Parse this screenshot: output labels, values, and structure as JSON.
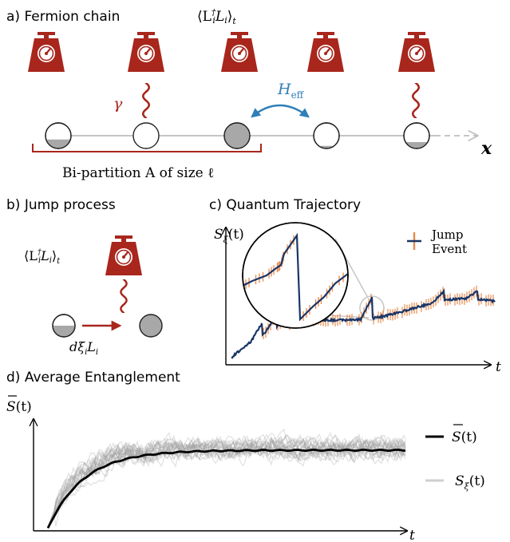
{
  "panels": {
    "a": {
      "title": "a)  Fermion chain",
      "measurement_label": "⟨L",
      "measurement_label_sup": "†",
      "measurement_label_sub": "i",
      "measurement_label_rest": "L",
      "measurement_label_sub2": "i",
      "measurement_label_close": "⟩",
      "measurement_label_t": "t",
      "rate_label": "γ",
      "hamiltonian_label": "H",
      "hamiltonian_sub": "eff",
      "axis_label": "x",
      "bipartition_label": "Bi-partition A of size ℓ",
      "site_fill_levels": [
        0.35,
        0.0,
        1.0,
        0.1,
        0.25
      ],
      "site_monitored": [
        false,
        true,
        false,
        false,
        true
      ]
    },
    "b": {
      "title": "b)  Jump process",
      "measurement_label": "⟨L",
      "measurement_label_sup": "†",
      "measurement_label_sub": "i",
      "measurement_label_rest": "L",
      "measurement_label_sub2": "i",
      "measurement_label_close": "⟩",
      "measurement_label_t": "t",
      "jump_label": "dξ",
      "jump_label_sub": "i",
      "jump_label_rest": "L",
      "jump_label_sub2": "i"
    },
    "c": {
      "title": "c)  Quantum Trajectory",
      "ylabel": "S",
      "ylabel_sub": "ξ",
      "ylabel_rest": "(t)",
      "xlabel": "t",
      "legend_line1": "Jump",
      "legend_line2": "Event"
    },
    "d": {
      "title": "d)  Average Entanglement",
      "ylabel": "S",
      "ylabel_rest": "(t)",
      "xlabel": "t",
      "legend_mean": "S",
      "legend_mean_rest": "(t)",
      "legend_traj": "S",
      "legend_traj_sub": "ξ",
      "legend_traj_rest": "(t)"
    }
  },
  "colors": {
    "scale_red": "#a8261c",
    "hamiltonian_blue": "#2f7fb8",
    "trajectory_navy": "#1a3566",
    "jump_orange": "#e8894a",
    "grey_fill": "#a8a8a8",
    "chain_line": "#bdbdbd",
    "traj_grey": "#b8b8b8"
  },
  "icons": [
    "scale-icon",
    "wavy-line-icon",
    "arc-arrow-icon",
    "magnifier-circle-icon"
  ]
}
